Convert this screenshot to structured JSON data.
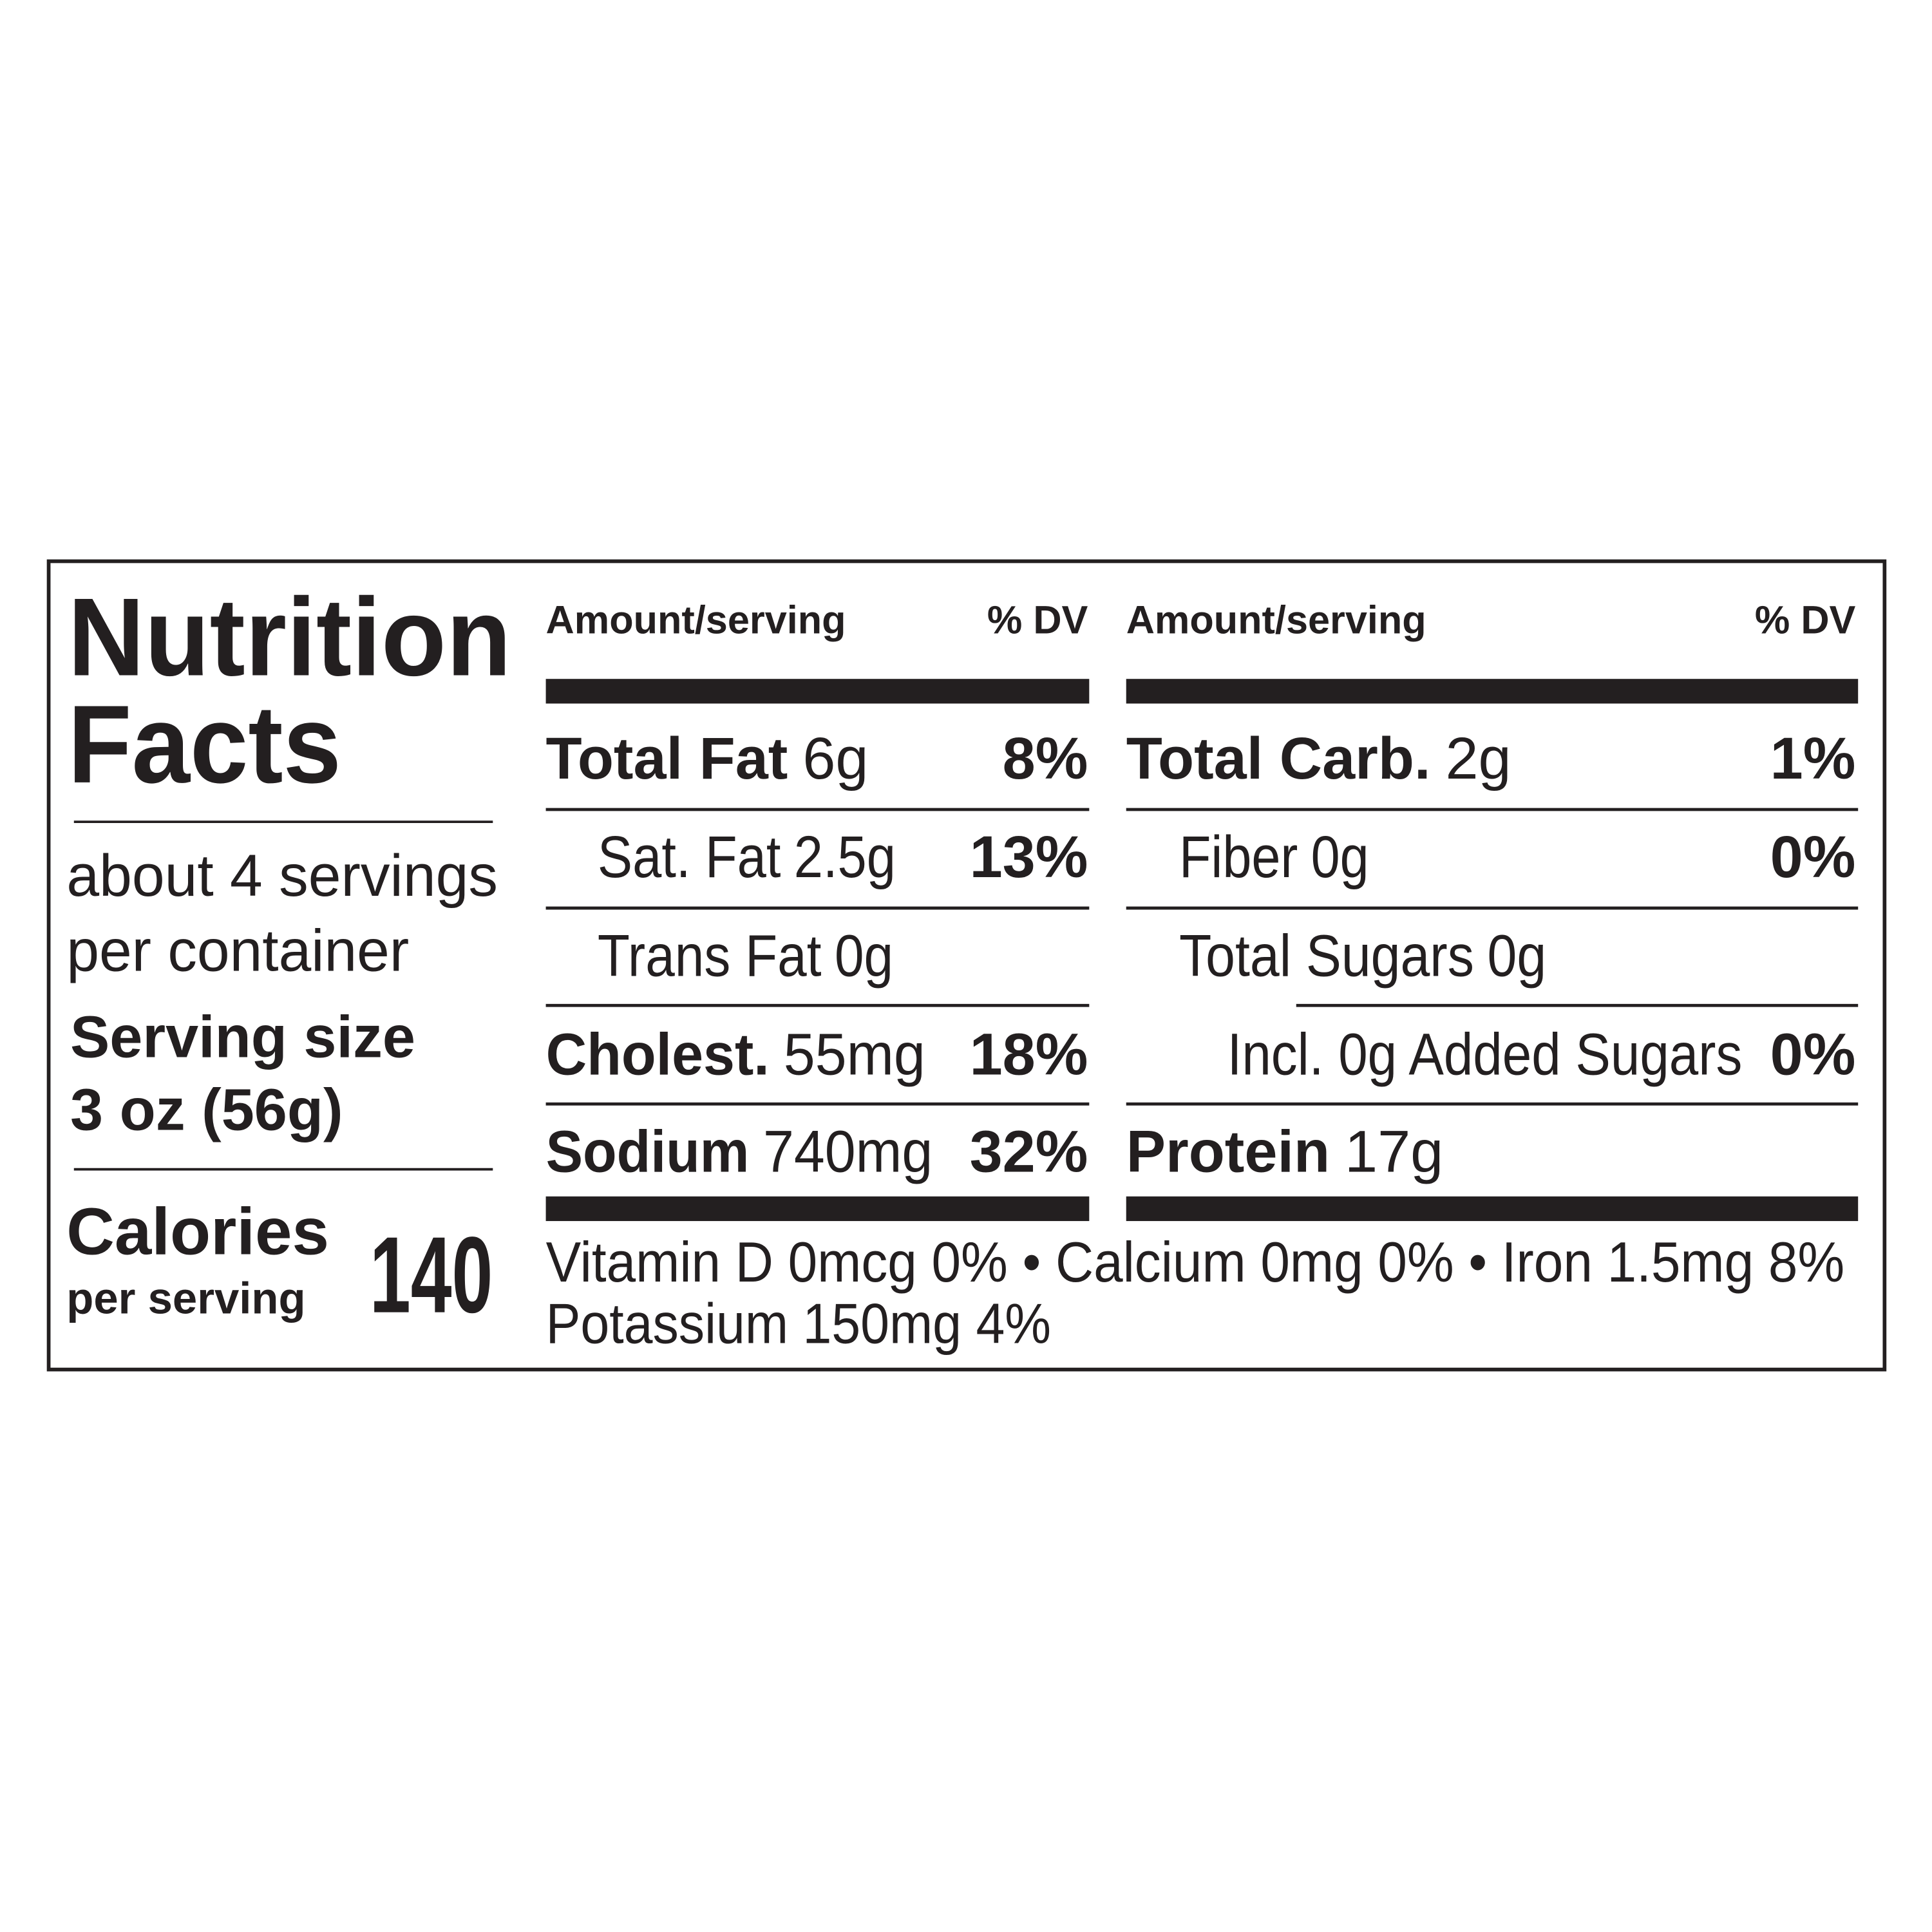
{
  "title": {
    "line1": "Nutrition",
    "line2": "Facts"
  },
  "servings": {
    "line1": "about 4 servings",
    "line2": "per container"
  },
  "serving_size": {
    "label": "Serving size",
    "value": "3 oz (56g)"
  },
  "calories": {
    "label": "Calories",
    "sublabel": "per serving",
    "value": "140"
  },
  "columns": [
    {
      "header_amount": "Amount/serving",
      "header_dv": "% DV",
      "rows": [
        {
          "name": "Total Fat",
          "amount": "6g",
          "dv": "8%"
        },
        {
          "name": "Sat. Fat",
          "amount": "2.5g",
          "dv": "13%"
        },
        {
          "name": "Trans Fat",
          "amount": "0g"
        },
        {
          "name": "Cholest.",
          "amount": "55mg",
          "dv": "18%"
        },
        {
          "name": "Sodium",
          "amount": "740mg",
          "dv": "32%"
        }
      ]
    },
    {
      "header_amount": "Amount/serving",
      "header_dv": "% DV",
      "rows": [
        {
          "name": "Total Carb.",
          "amount": "2g",
          "dv": "1%"
        },
        {
          "name": "Fiber",
          "amount": "0g",
          "dv": "0%"
        },
        {
          "name": "Total Sugars",
          "amount": "0g"
        },
        {
          "name": "Incl. 0g Added Sugars",
          "dv": "0%"
        },
        {
          "name": "Protein",
          "amount": "17g"
        }
      ]
    }
  ],
  "footer": [
    "Vitamin D 0mcg 0% • Calcium 0mg 0% • Iron 1.5mg 8%",
    "Potassium 150mg 4%"
  ]
}
